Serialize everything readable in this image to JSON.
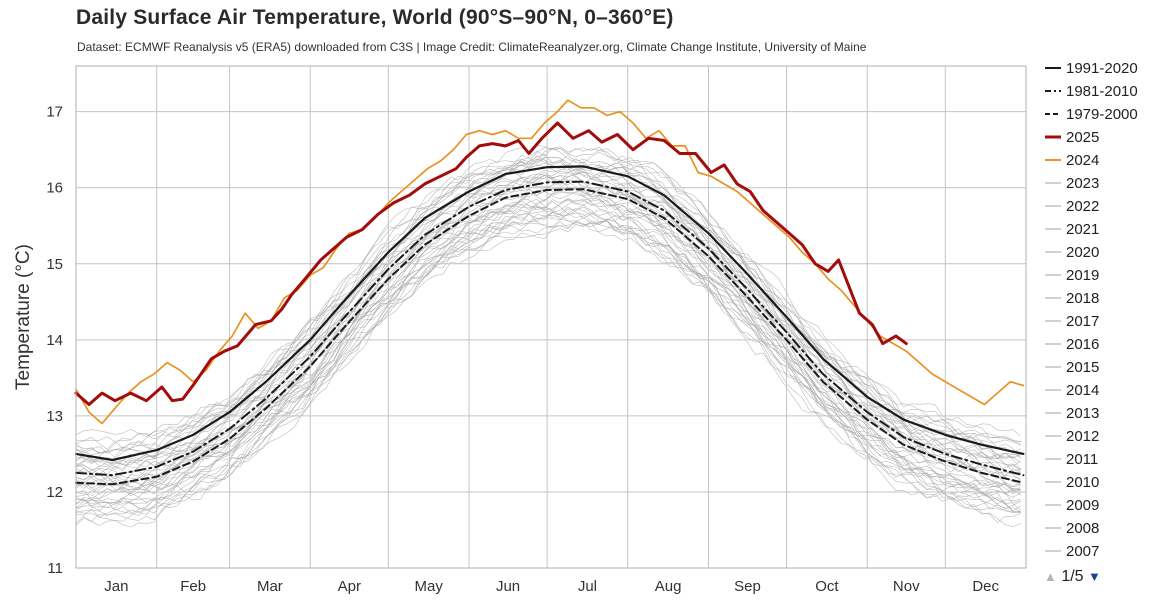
{
  "chart_data": {
    "type": "line",
    "title": "Daily Surface Air Temperature, World (90°S–90°N, 0–360°E)",
    "subtitle": "Dataset: ECMWF Reanalysis v5 (ERA5) downloaded from C3S | Image Credit: ClimateReanalyzer.org, Climate Change Institute, University of Maine",
    "xlabel": "",
    "ylabel": "Temperature (°C)",
    "x_unit": "day of year",
    "xlim": [
      1,
      366
    ],
    "ylim": [
      11,
      17.6
    ],
    "yticks": [
      11,
      12,
      13,
      14,
      15,
      16,
      17
    ],
    "months": [
      "Jan",
      "Feb",
      "Mar",
      "Apr",
      "May",
      "Jun",
      "Jul",
      "Aug",
      "Sep",
      "Oct",
      "Nov",
      "Dec"
    ],
    "grid": true,
    "legend_position": "right",
    "legend_page": "1/5",
    "series": [
      {
        "name": "1991-2020",
        "color": "#1a1a1a",
        "dash": "solid",
        "width": 2.2,
        "x": [
          1,
          15,
          32,
          46,
          60,
          74,
          91,
          105,
          121,
          135,
          152,
          166,
          182,
          196,
          213,
          227,
          244,
          258,
          274,
          288,
          305,
          319,
          335,
          349,
          365
        ],
        "y": [
          12.5,
          12.42,
          12.55,
          12.75,
          13.05,
          13.45,
          14.0,
          14.55,
          15.15,
          15.6,
          15.95,
          16.18,
          16.27,
          16.28,
          16.15,
          15.9,
          15.4,
          14.9,
          14.3,
          13.75,
          13.25,
          12.95,
          12.75,
          12.62,
          12.5
        ]
      },
      {
        "name": "1981-2010",
        "color": "#1a1a1a",
        "dash": "dashdot",
        "width": 2.0,
        "x": [
          1,
          15,
          32,
          46,
          60,
          74,
          91,
          105,
          121,
          135,
          152,
          166,
          182,
          196,
          213,
          227,
          244,
          258,
          274,
          288,
          305,
          319,
          335,
          349,
          365
        ],
        "y": [
          12.25,
          12.22,
          12.33,
          12.53,
          12.83,
          13.23,
          13.78,
          14.33,
          14.93,
          15.38,
          15.75,
          15.97,
          16.07,
          16.08,
          15.95,
          15.7,
          15.2,
          14.7,
          14.1,
          13.55,
          13.05,
          12.72,
          12.5,
          12.36,
          12.22
        ]
      },
      {
        "name": "1979-2000",
        "color": "#1a1a1a",
        "dash": "dashed",
        "width": 2.0,
        "x": [
          1,
          15,
          32,
          46,
          60,
          74,
          91,
          105,
          121,
          135,
          152,
          166,
          182,
          196,
          213,
          227,
          244,
          258,
          274,
          288,
          305,
          319,
          335,
          349,
          365
        ],
        "y": [
          12.12,
          12.1,
          12.2,
          12.4,
          12.7,
          13.1,
          13.65,
          14.2,
          14.8,
          15.25,
          15.63,
          15.87,
          15.97,
          15.98,
          15.85,
          15.6,
          15.1,
          14.6,
          14.0,
          13.45,
          12.95,
          12.62,
          12.4,
          12.25,
          12.12
        ]
      },
      {
        "name": "2025",
        "color": "#a30c0c",
        "dash": "solid",
        "width": 3.0,
        "x": [
          1,
          6,
          11,
          16,
          22,
          28,
          34,
          38,
          42,
          47,
          53,
          58,
          63,
          70,
          76,
          80,
          84,
          89,
          95,
          100,
          105,
          111,
          117,
          123,
          129,
          135,
          141,
          147,
          151,
          156,
          161,
          166,
          171,
          175,
          180,
          186,
          192,
          198,
          203,
          209,
          215,
          221,
          227,
          233,
          239,
          245,
          250,
          255,
          260,
          265,
          270,
          275,
          280,
          285,
          290,
          294,
          298,
          302,
          307,
          311,
          316,
          320
        ],
        "y": [
          13.3,
          13.15,
          13.3,
          13.2,
          13.3,
          13.2,
          13.38,
          13.2,
          13.22,
          13.45,
          13.75,
          13.85,
          13.92,
          14.2,
          14.25,
          14.4,
          14.6,
          14.8,
          15.05,
          15.2,
          15.35,
          15.45,
          15.65,
          15.8,
          15.9,
          16.05,
          16.15,
          16.25,
          16.4,
          16.55,
          16.58,
          16.55,
          16.62,
          16.45,
          16.65,
          16.85,
          16.65,
          16.75,
          16.6,
          16.7,
          16.5,
          16.65,
          16.62,
          16.45,
          16.45,
          16.2,
          16.3,
          16.05,
          15.95,
          15.7,
          15.55,
          15.4,
          15.25,
          15.0,
          14.9,
          15.05,
          14.7,
          14.35,
          14.2,
          13.95,
          14.05,
          13.95
        ]
      },
      {
        "name": "2024",
        "color": "#e89221",
        "dash": "solid",
        "width": 1.7,
        "x": [
          1,
          6,
          11,
          16,
          21,
          26,
          31,
          36,
          41,
          46,
          51,
          56,
          61,
          66,
          71,
          76,
          81,
          86,
          91,
          96,
          101,
          106,
          111,
          116,
          121,
          126,
          131,
          136,
          141,
          146,
          151,
          156,
          161,
          166,
          171,
          176,
          181,
          186,
          190,
          195,
          200,
          205,
          210,
          215,
          220,
          225,
          230,
          235,
          240,
          245,
          250,
          255,
          260,
          265,
          270,
          275,
          280,
          285,
          290,
          295,
          300,
          305,
          310,
          315,
          320,
          325,
          330,
          335,
          340,
          345,
          350,
          355,
          360,
          365
        ],
        "y": [
          13.35,
          13.05,
          12.9,
          13.1,
          13.3,
          13.45,
          13.55,
          13.7,
          13.6,
          13.45,
          13.6,
          13.85,
          14.05,
          14.35,
          14.15,
          14.25,
          14.55,
          14.65,
          14.85,
          14.95,
          15.2,
          15.4,
          15.45,
          15.6,
          15.8,
          15.95,
          16.1,
          16.25,
          16.35,
          16.5,
          16.7,
          16.75,
          16.7,
          16.75,
          16.65,
          16.65,
          16.85,
          17.0,
          17.15,
          17.05,
          17.05,
          16.95,
          17.0,
          16.85,
          16.65,
          16.75,
          16.55,
          16.55,
          16.2,
          16.15,
          16.05,
          15.95,
          15.8,
          15.65,
          15.5,
          15.35,
          15.15,
          15.0,
          14.8,
          14.65,
          14.45,
          14.25,
          14.05,
          13.95,
          13.85,
          13.7,
          13.55,
          13.45,
          13.35,
          13.25,
          13.15,
          13.3,
          13.45,
          13.4
        ]
      }
    ],
    "legend_entries": [
      {
        "name": "1991-2020",
        "color": "#1a1a1a",
        "dash": "solid"
      },
      {
        "name": "1981-2010",
        "color": "#1a1a1a",
        "dash": "dashdot"
      },
      {
        "name": "1979-2000",
        "color": "#1a1a1a",
        "dash": "dashed"
      },
      {
        "name": "2025",
        "color": "#a30c0c",
        "dash": "solid"
      },
      {
        "name": "2024",
        "color": "#e89221",
        "dash": "solid"
      },
      {
        "name": "2023",
        "color": "#d0d0d0",
        "dash": "solid"
      },
      {
        "name": "2022",
        "color": "#d0d0d0",
        "dash": "solid"
      },
      {
        "name": "2021",
        "color": "#d0d0d0",
        "dash": "solid"
      },
      {
        "name": "2020",
        "color": "#d0d0d0",
        "dash": "solid"
      },
      {
        "name": "2019",
        "color": "#d0d0d0",
        "dash": "solid"
      },
      {
        "name": "2018",
        "color": "#d0d0d0",
        "dash": "solid"
      },
      {
        "name": "2017",
        "color": "#d0d0d0",
        "dash": "solid"
      },
      {
        "name": "2016",
        "color": "#d0d0d0",
        "dash": "solid"
      },
      {
        "name": "2015",
        "color": "#d0d0d0",
        "dash": "solid"
      },
      {
        "name": "2014",
        "color": "#d0d0d0",
        "dash": "solid"
      },
      {
        "name": "2013",
        "color": "#d0d0d0",
        "dash": "solid"
      },
      {
        "name": "2012",
        "color": "#d0d0d0",
        "dash": "solid"
      },
      {
        "name": "2011",
        "color": "#d0d0d0",
        "dash": "solid"
      },
      {
        "name": "2010",
        "color": "#d0d0d0",
        "dash": "solid"
      },
      {
        "name": "2009",
        "color": "#d0d0d0",
        "dash": "solid"
      },
      {
        "name": "2008",
        "color": "#d0d0d0",
        "dash": "solid"
      },
      {
        "name": "2007",
        "color": "#d0d0d0",
        "dash": "solid"
      }
    ],
    "background_years_color": "#a6a6a6"
  },
  "icons": {
    "pager_up": "triangle-up-icon",
    "pager_down": "triangle-down-icon"
  },
  "pager": {
    "up": "▲",
    "down": "▼",
    "page": "1/5"
  }
}
